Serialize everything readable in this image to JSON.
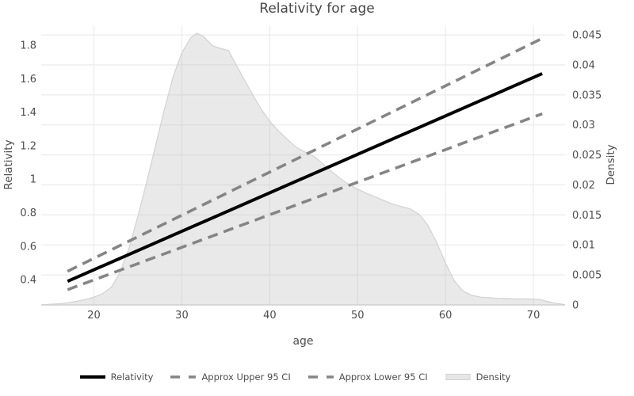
{
  "chart_data": {
    "type": "line",
    "title": "Relativity for age",
    "xlabel": "age",
    "ylabel_left": "Relativity",
    "ylabel_right": "Density",
    "x_range": [
      14,
      73.6
    ],
    "y_left_range": [
      0.249,
      1.918
    ],
    "y_right_range": [
      0,
      0.0466
    ],
    "x_ticks": [
      20,
      30,
      40,
      50,
      60,
      70
    ],
    "y_left_ticks": [
      0.4,
      0.6,
      0.8,
      1,
      1.2,
      1.4,
      1.6,
      1.8
    ],
    "y_right_ticks": [
      0,
      0.005,
      0.01,
      0.015,
      0.02,
      0.025,
      0.03,
      0.035,
      0.04,
      0.045
    ],
    "grid": true,
    "legend_position": "bottom-center",
    "series": [
      {
        "name": "Relativity",
        "axis": "left",
        "style": "solid",
        "points": [
          [
            17,
            0.39
          ],
          [
            71,
            1.63
          ]
        ]
      },
      {
        "name": "Approx Upper 95 CI",
        "axis": "left",
        "style": "dashed",
        "points": [
          [
            17,
            0.45
          ],
          [
            71,
            1.84
          ]
        ]
      },
      {
        "name": "Approx Lower 95 CI",
        "axis": "left",
        "style": "dashed",
        "points": [
          [
            17,
            0.34
          ],
          [
            71,
            1.39
          ]
        ]
      }
    ],
    "density_series": {
      "name": "Density",
      "axis": "right",
      "points": [
        [
          14,
          3e-05
        ],
        [
          15,
          0.0001
        ],
        [
          16,
          0.0002
        ],
        [
          17,
          0.00035
        ],
        [
          18,
          0.0006
        ],
        [
          19,
          0.0009
        ],
        [
          20,
          0.0013
        ],
        [
          21,
          0.0019
        ],
        [
          22,
          0.003
        ],
        [
          23,
          0.0055
        ],
        [
          24,
          0.0095
        ],
        [
          25,
          0.0148
        ],
        [
          26,
          0.0205
        ],
        [
          27,
          0.0265
        ],
        [
          28,
          0.0325
        ],
        [
          29,
          0.038
        ],
        [
          30,
          0.042
        ],
        [
          31,
          0.0445
        ],
        [
          31.7,
          0.0453
        ],
        [
          32.5,
          0.0447
        ],
        [
          33.5,
          0.0432
        ],
        [
          34.5,
          0.0427
        ],
        [
          35.3,
          0.0424
        ],
        [
          36,
          0.0405
        ],
        [
          37,
          0.0378
        ],
        [
          38,
          0.0352
        ],
        [
          39,
          0.0327
        ],
        [
          40,
          0.0306
        ],
        [
          41,
          0.029
        ],
        [
          42,
          0.0276
        ],
        [
          43,
          0.0263
        ],
        [
          44,
          0.0255
        ],
        [
          45,
          0.0248
        ],
        [
          46,
          0.0236
        ],
        [
          47,
          0.0223
        ],
        [
          48,
          0.0211
        ],
        [
          49,
          0.0201
        ],
        [
          50,
          0.0193
        ],
        [
          51,
          0.0186
        ],
        [
          52,
          0.018
        ],
        [
          53,
          0.0174
        ],
        [
          54,
          0.0168
        ],
        [
          55,
          0.0164
        ],
        [
          56,
          0.016
        ],
        [
          57,
          0.0151
        ],
        [
          58,
          0.0133
        ],
        [
          59,
          0.0104
        ],
        [
          60,
          0.007
        ],
        [
          61,
          0.004
        ],
        [
          62,
          0.0023
        ],
        [
          63,
          0.0016
        ],
        [
          64,
          0.0013
        ],
        [
          65,
          0.0012
        ],
        [
          66,
          0.0011
        ],
        [
          67,
          0.00105
        ],
        [
          68,
          0.00102
        ],
        [
          69,
          0.001
        ],
        [
          70,
          0.00098
        ],
        [
          70.8,
          0.0009
        ],
        [
          71.5,
          0.0006
        ],
        [
          72.5,
          0.0003
        ],
        [
          73.6,
          5e-05
        ]
      ]
    },
    "legend": [
      {
        "label": "Relativity",
        "sample": "solid"
      },
      {
        "label": "Approx Upper 95 CI",
        "sample": "dashed"
      },
      {
        "label": "Approx Lower 95 CI",
        "sample": "dashed"
      },
      {
        "label": "Density",
        "sample": "area"
      }
    ],
    "colors": {
      "line": "#000000",
      "ci": "#858585",
      "density_fill": "#bbbbbb",
      "density_edge": "#d2d2d2",
      "grid": "#ebebeb",
      "axis_line": "#d0d0d0",
      "text": "#4d4d4d",
      "legend_area_sample": "#e6e6e6"
    }
  }
}
